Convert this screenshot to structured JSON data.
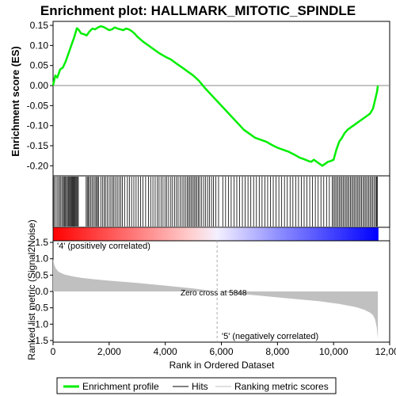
{
  "chart_data": {
    "type": "line",
    "title": "Enrichment plot: HALLMARK_MITOTIC_SPINDLE",
    "xlabel": "Rank in Ordered Dataset",
    "top_panel": {
      "ylabel": "Enrichment score (ES)",
      "ylim": [
        -0.225,
        0.16
      ],
      "yticks": [
        0.15,
        0.1,
        0.05,
        0.0,
        -0.05,
        -0.1,
        -0.15,
        -0.2
      ],
      "ytick_labels": [
        "0.15",
        "0.10",
        "0.05",
        "0.00",
        "-0.05",
        "-0.10",
        "-0.15",
        "-0.20"
      ],
      "series": [
        {
          "name": "Enrichment profile",
          "color": "#00ee00",
          "x": [
            0,
            80,
            150,
            250,
            350,
            450,
            550,
            650,
            750,
            850,
            900,
            1000,
            1100,
            1200,
            1300,
            1400,
            1500,
            1600,
            1700,
            1800,
            1900,
            2000,
            2100,
            2200,
            2300,
            2400,
            2500,
            2600,
            2700,
            2800,
            2900,
            3000,
            3200,
            3400,
            3600,
            3800,
            4000,
            4200,
            4400,
            4600,
            4800,
            5000,
            5200,
            5400,
            5600,
            5800,
            6000,
            6200,
            6400,
            6600,
            6800,
            7000,
            7200,
            7400,
            7600,
            7800,
            8000,
            8200,
            8400,
            8600,
            8800,
            9000,
            9100,
            9200,
            9300,
            9400,
            9500,
            9600,
            9700,
            9800,
            9900,
            10000,
            10100,
            10200,
            10300,
            10400,
            10500,
            10600,
            10700,
            10800,
            10900,
            11000,
            11100,
            11200,
            11300,
            11400,
            11450,
            11500,
            11550,
            11580
          ],
          "y": [
            0.0,
            0.025,
            0.02,
            0.04,
            0.045,
            0.06,
            0.08,
            0.1,
            0.12,
            0.143,
            0.14,
            0.13,
            0.128,
            0.125,
            0.135,
            0.142,
            0.14,
            0.145,
            0.148,
            0.146,
            0.142,
            0.138,
            0.14,
            0.145,
            0.142,
            0.14,
            0.138,
            0.142,
            0.14,
            0.136,
            0.13,
            0.122,
            0.11,
            0.1,
            0.09,
            0.08,
            0.072,
            0.065,
            0.055,
            0.045,
            0.035,
            0.025,
            0.012,
            -0.005,
            -0.02,
            -0.035,
            -0.05,
            -0.065,
            -0.08,
            -0.095,
            -0.11,
            -0.12,
            -0.13,
            -0.135,
            -0.14,
            -0.148,
            -0.155,
            -0.16,
            -0.165,
            -0.172,
            -0.18,
            -0.185,
            -0.188,
            -0.19,
            -0.185,
            -0.19,
            -0.195,
            -0.2,
            -0.195,
            -0.19,
            -0.188,
            -0.185,
            -0.16,
            -0.14,
            -0.13,
            -0.118,
            -0.11,
            -0.105,
            -0.1,
            -0.095,
            -0.09,
            -0.085,
            -0.08,
            -0.075,
            -0.07,
            -0.058,
            -0.045,
            -0.03,
            -0.015,
            0.0
          ]
        }
      ]
    },
    "hits_panel": {
      "name": "Hits",
      "hit_ranks": [
        30,
        80,
        140,
        190,
        240,
        280,
        330,
        370,
        400,
        430,
        470,
        510,
        540,
        570,
        600,
        630,
        660,
        690,
        720,
        750,
        780,
        810,
        840,
        870,
        900,
        1180,
        1220,
        1260,
        1300,
        1350,
        1400,
        1450,
        1500,
        1550,
        1580,
        1620,
        1700,
        1760,
        1820,
        1870,
        1930,
        2000,
        2060,
        2120,
        2170,
        2230,
        2290,
        2350,
        2410,
        2470,
        2550,
        2650,
        2720,
        2800,
        2880,
        2960,
        3040,
        3120,
        3200,
        3300,
        3400,
        3480,
        3560,
        3640,
        3720,
        3780,
        3850,
        3920,
        3990,
        4050,
        4120,
        4200,
        4260,
        4330,
        4400,
        4460,
        4530,
        4600,
        4660,
        4720,
        4780,
        4830,
        4880,
        4930,
        4980,
        5030,
        5080,
        5130,
        5180,
        5230,
        5300,
        5370,
        5440,
        5510,
        5580,
        5650,
        5720,
        5800,
        5900,
        6050,
        6150,
        6250,
        6350,
        6450,
        6550,
        6650,
        6750,
        6850,
        6950,
        7050,
        7150,
        7250,
        7350,
        7450,
        7550,
        7650,
        7750,
        7850,
        7950,
        8050,
        8150,
        8250,
        8350,
        8450,
        8550,
        8650,
        8750,
        8850,
        8950,
        9050,
        9150,
        9250,
        9350,
        9450,
        9550,
        9650,
        9750,
        9850,
        9950,
        10000,
        10050,
        10100,
        10150,
        10200,
        10250,
        10300,
        10350,
        10400,
        10450,
        10500,
        10550,
        10600,
        10650,
        10700,
        10750,
        10800,
        10850,
        10900,
        10950,
        11000,
        11050,
        11100,
        11150,
        11200,
        11250,
        11300,
        11350,
        11400,
        11450,
        11500,
        11530,
        11560
      ]
    },
    "color_bar": {
      "pos_color": "#ff0000",
      "neg_color": "#0000ff",
      "pos_label": "'4' (positively correlated)",
      "neg_label": "'5' (negatively correlated)",
      "pos_label_color": "#ff0000",
      "neg_label_color": "#0000cc"
    },
    "metric_panel": {
      "ylabel": "Ranked list metric (Signal2Noise)",
      "ylim": [
        -1.55,
        1.55
      ],
      "yticks": [
        1.5,
        1.0,
        0.5,
        0.0,
        -0.5,
        -1.0,
        -1.5
      ],
      "ytick_labels": [
        "1.5",
        "1.0",
        "0.5",
        "0.0",
        "-0.5",
        "-1.0",
        "-1.5"
      ],
      "fill_color": "#c0c0c0",
      "x": [
        0,
        20,
        50,
        100,
        200,
        400,
        700,
        1000,
        1500,
        2000,
        3000,
        4000,
        5000,
        5848,
        6500,
        7500,
        8500,
        9500,
        10200,
        10800,
        11100,
        11300,
        11400,
        11480,
        11540,
        11580
      ],
      "y": [
        1.0,
        0.9,
        0.8,
        0.7,
        0.6,
        0.52,
        0.46,
        0.42,
        0.37,
        0.33,
        0.26,
        0.18,
        0.09,
        0.0,
        -0.06,
        -0.14,
        -0.22,
        -0.3,
        -0.38,
        -0.48,
        -0.56,
        -0.65,
        -0.72,
        -0.85,
        -1.1,
        -1.45
      ],
      "zero_cross_label": "Zero cross at 5848",
      "zero_cross_rank": 5848
    },
    "xlim": [
      0,
      12000
    ],
    "xticks": [
      0,
      2000,
      4000,
      6000,
      8000,
      10000,
      12000
    ],
    "xtick_labels": [
      "0",
      "2,000",
      "4,000",
      "6,000",
      "8,000",
      "10,000",
      "12,000"
    ],
    "legend": {
      "placement": "bottom",
      "entries": [
        {
          "label": "Enrichment profile",
          "color": "#00ee00"
        },
        {
          "label": "Hits",
          "color": "#000000"
        },
        {
          "label": "Ranking metric scores",
          "color": "#c0c0c0"
        }
      ]
    }
  }
}
